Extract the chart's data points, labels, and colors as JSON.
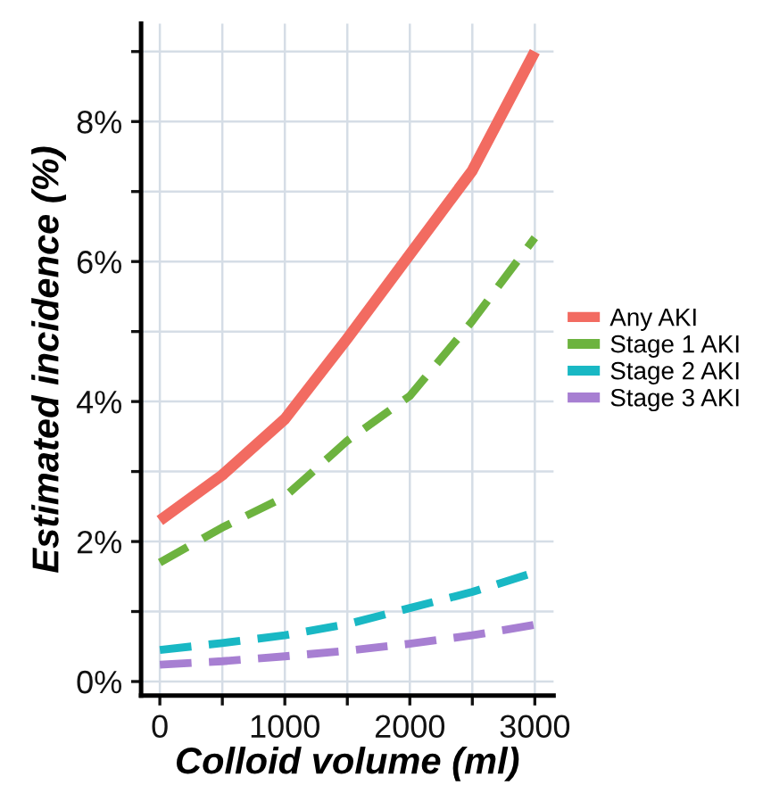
{
  "chart_data": {
    "type": "line",
    "xlabel": "Colloid volume (ml)",
    "ylabel": "Estimated incidence (%)",
    "x": [
      0,
      500,
      1000,
      1500,
      2000,
      2500,
      3000
    ],
    "series": [
      {
        "name": "Any AKI",
        "color": "#f26b61",
        "line_style": "solid",
        "values": [
          2.3,
          2.95,
          3.75,
          4.9,
          6.1,
          7.3,
          9.0
        ]
      },
      {
        "name": "Stage 1 AKI",
        "color": "#6db33f",
        "line_style": "dashed",
        "values": [
          1.7,
          2.2,
          2.64,
          3.44,
          4.08,
          5.15,
          6.34
        ]
      },
      {
        "name": "Stage 2 AKI",
        "color": "#19b8c4",
        "line_style": "dashed",
        "values": [
          0.45,
          0.55,
          0.66,
          0.82,
          1.05,
          1.28,
          1.56
        ]
      },
      {
        "name": "Stage 3 AKI",
        "color": "#a77fd2",
        "line_style": "dashed",
        "values": [
          0.24,
          0.29,
          0.36,
          0.44,
          0.54,
          0.66,
          0.81
        ]
      }
    ],
    "xlim": [
      -150,
      3150
    ],
    "ylim": [
      -0.2,
      9.4
    ],
    "xticks": [
      0,
      {
        "value": 500,
        "label": null
      },
      1000,
      {
        "value": 1500,
        "label": null
      },
      2000,
      {
        "value": 2500,
        "label": null
      },
      3000
    ],
    "yticks": [
      {
        "value": 0,
        "label": "0%"
      },
      {
        "value": 1,
        "label": null
      },
      {
        "value": 2,
        "label": "2%"
      },
      {
        "value": 3,
        "label": null
      },
      {
        "value": 4,
        "label": "4%"
      },
      {
        "value": 5,
        "label": null
      },
      {
        "value": 6,
        "label": "6%"
      },
      {
        "value": 7,
        "label": null
      },
      {
        "value": 8,
        "label": "8%"
      },
      {
        "value": 9,
        "label": null
      }
    ],
    "grid": true,
    "legend": "right",
    "marker": "none"
  }
}
